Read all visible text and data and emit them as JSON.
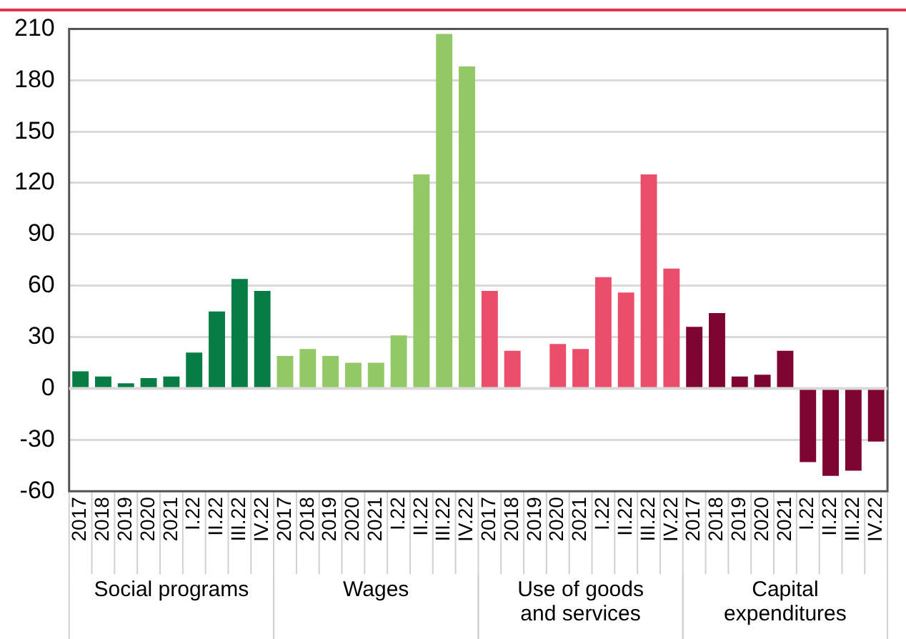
{
  "chart_data": {
    "type": "bar",
    "categories": [
      "2017",
      "2018",
      "2019",
      "2020",
      "2021",
      "I.22",
      "II.22",
      "III.22",
      "IV.22",
      "2017",
      "2018",
      "2019",
      "2020",
      "2021",
      "I.22",
      "II.22",
      "III.22",
      "IV.22",
      "2017",
      "2018",
      "2019",
      "2020",
      "2021",
      "I.22",
      "II.22",
      "III.22",
      "IV.22",
      "2017",
      "2018",
      "2019",
      "2020",
      "2021",
      "I.22",
      "II.22",
      "III.22",
      "IV.22"
    ],
    "series": [
      {
        "color": "#077d45",
        "values": [
          10,
          7,
          3,
          6,
          7,
          21,
          45,
          64,
          57,
          null,
          null,
          null,
          null,
          null,
          null,
          null,
          null,
          null,
          null,
          null,
          null,
          null,
          null,
          null,
          null,
          null,
          null,
          null,
          null,
          null,
          null,
          null,
          null,
          null,
          null,
          null
        ]
      },
      {
        "color": "#92c865",
        "values": [
          null,
          null,
          null,
          null,
          null,
          null,
          null,
          null,
          null,
          19,
          23,
          19,
          15,
          15,
          31,
          125,
          207,
          188,
          null,
          null,
          null,
          null,
          null,
          null,
          null,
          null,
          null,
          null,
          null,
          null,
          null,
          null,
          null,
          null,
          null,
          null
        ]
      },
      {
        "color": "#eb4e6a",
        "values": [
          null,
          null,
          null,
          null,
          null,
          null,
          null,
          null,
          null,
          null,
          null,
          null,
          null,
          null,
          null,
          null,
          null,
          null,
          57,
          22,
          0,
          26,
          23,
          65,
          56,
          125,
          70,
          null,
          null,
          null,
          null,
          null,
          null,
          null,
          null,
          null
        ]
      },
      {
        "color": "#7e0532",
        "values": [
          null,
          null,
          null,
          null,
          null,
          null,
          null,
          null,
          null,
          null,
          null,
          null,
          null,
          null,
          null,
          null,
          null,
          null,
          null,
          null,
          null,
          null,
          null,
          null,
          null,
          null,
          null,
          36,
          44,
          7,
          8,
          22,
          -43,
          -51,
          -48,
          -31
        ]
      }
    ],
    "ylim": [
      -60,
      210
    ],
    "yticks": [
      -60,
      -30,
      0,
      30,
      60,
      90,
      120,
      150,
      180,
      210
    ],
    "annotations": [
      "Social programs",
      "Wages",
      "Use of goods and services",
      "Capital expenditures"
    ],
    "grid": "y",
    "legend": false
  }
}
